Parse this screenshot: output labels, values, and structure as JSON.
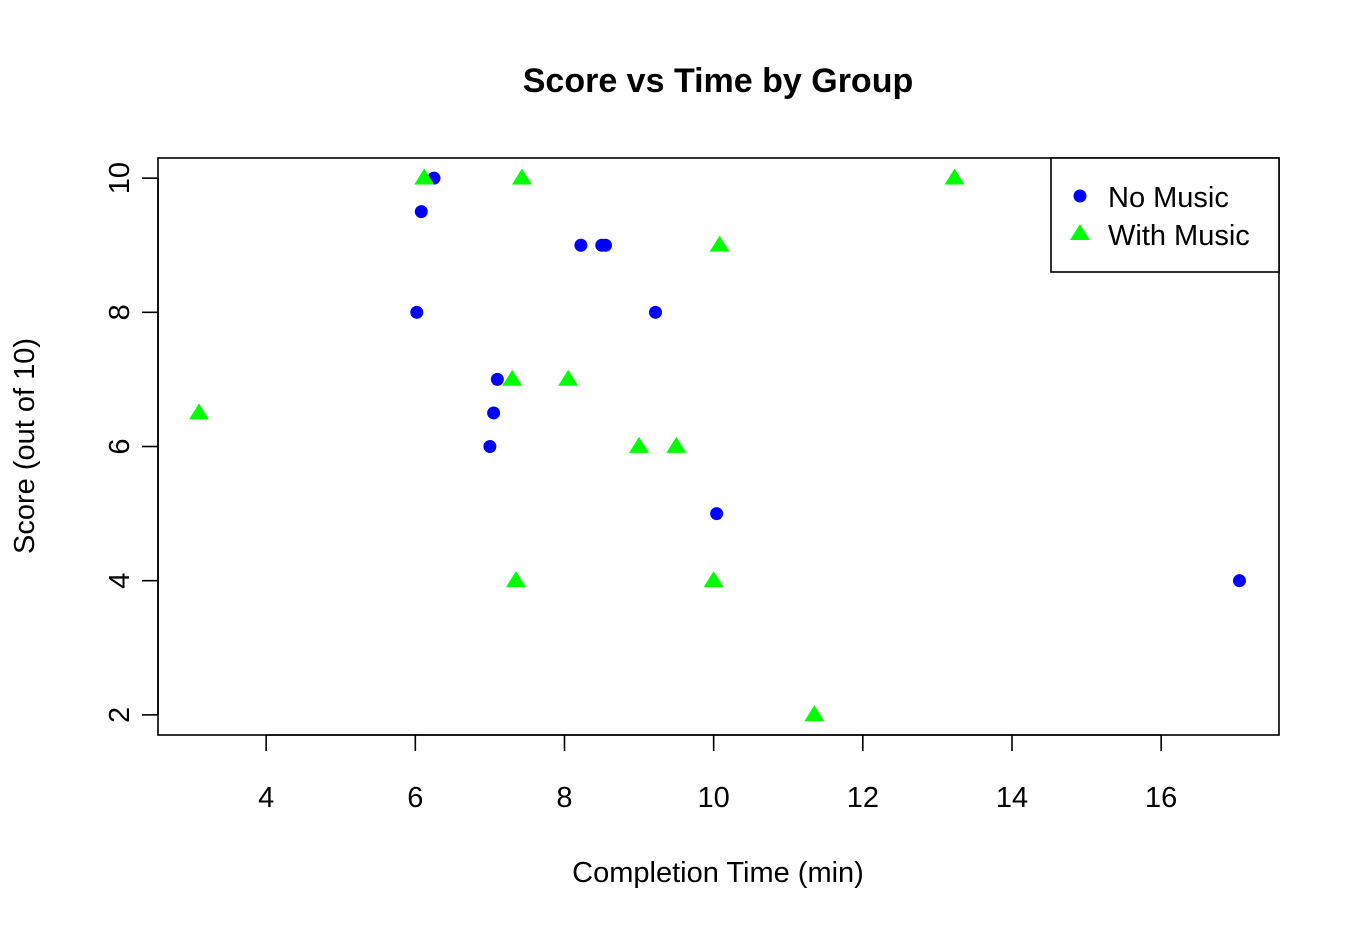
{
  "chart_data": {
    "type": "scatter",
    "title": "Score vs Time by Group",
    "xlabel": "Completion Time (min)",
    "ylabel": "Score (out of 10)",
    "xlim": [
      2.55,
      17.58
    ],
    "ylim": [
      1.7,
      10.3
    ],
    "xticks": [
      4,
      6,
      8,
      10,
      12,
      14,
      16
    ],
    "yticks": [
      2,
      4,
      6,
      8,
      10
    ],
    "grid": false,
    "legend_position": "top-right",
    "series": [
      {
        "name": "No Music",
        "marker": "circle",
        "color": "#0000ff",
        "points": [
          {
            "x": 6.25,
            "y": 10
          },
          {
            "x": 6.08,
            "y": 9.5
          },
          {
            "x": 6.02,
            "y": 8
          },
          {
            "x": 8.22,
            "y": 9
          },
          {
            "x": 8.5,
            "y": 9
          },
          {
            "x": 8.55,
            "y": 9
          },
          {
            "x": 9.22,
            "y": 8
          },
          {
            "x": 7.1,
            "y": 7
          },
          {
            "x": 7.05,
            "y": 6.5
          },
          {
            "x": 7.0,
            "y": 6
          },
          {
            "x": 10.04,
            "y": 5
          },
          {
            "x": 17.05,
            "y": 4
          }
        ]
      },
      {
        "name": "With Music",
        "marker": "triangle",
        "color": "#00ff00",
        "points": [
          {
            "x": 3.1,
            "y": 6.5
          },
          {
            "x": 6.12,
            "y": 10
          },
          {
            "x": 7.43,
            "y": 10
          },
          {
            "x": 13.23,
            "y": 10
          },
          {
            "x": 10.08,
            "y": 9
          },
          {
            "x": 7.3,
            "y": 7
          },
          {
            "x": 8.05,
            "y": 7
          },
          {
            "x": 9.0,
            "y": 6
          },
          {
            "x": 9.5,
            "y": 6
          },
          {
            "x": 7.35,
            "y": 4
          },
          {
            "x": 10.0,
            "y": 4
          },
          {
            "x": 11.35,
            "y": 2
          }
        ]
      }
    ]
  }
}
